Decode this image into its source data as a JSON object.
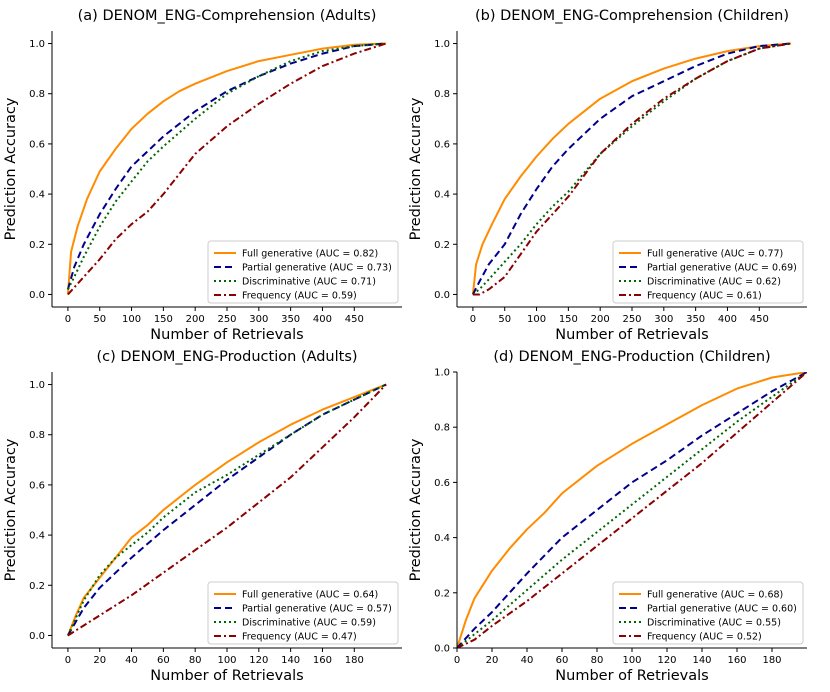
{
  "chart_data": [
    {
      "id": "a",
      "type": "line",
      "title": "(a) DENOM_ENG-Comprehension (Adults)",
      "xlabel": "Number of Retrievals",
      "ylabel": "Prediction Accuracy",
      "xlim": [
        -25,
        525
      ],
      "ylim": [
        -0.05,
        1.05
      ],
      "xticks": [
        0,
        50,
        100,
        150,
        200,
        250,
        300,
        350,
        400,
        450
      ],
      "yticks": [
        0.0,
        0.2,
        0.4,
        0.6,
        0.8,
        1.0
      ],
      "xdata_max": 500,
      "legend_position": "lower-right",
      "series": [
        {
          "name": "Full generative (AUC = 0.82)",
          "color": "#ff8c00",
          "dash": "solid",
          "x": [
            0,
            5,
            15,
            30,
            50,
            75,
            100,
            125,
            150,
            175,
            200,
            250,
            300,
            350,
            400,
            450,
            500
          ],
          "y": [
            0.0,
            0.17,
            0.27,
            0.38,
            0.49,
            0.58,
            0.66,
            0.72,
            0.77,
            0.81,
            0.84,
            0.89,
            0.93,
            0.955,
            0.98,
            0.995,
            1.0
          ]
        },
        {
          "name": "Partial generative (AUC = 0.73)",
          "color": "#00008b",
          "dash": "dashed",
          "x": [
            0,
            10,
            25,
            50,
            75,
            100,
            125,
            150,
            200,
            250,
            300,
            350,
            400,
            450,
            500
          ],
          "y": [
            0.02,
            0.11,
            0.2,
            0.32,
            0.42,
            0.51,
            0.57,
            0.63,
            0.73,
            0.81,
            0.87,
            0.92,
            0.96,
            0.99,
            1.0
          ]
        },
        {
          "name": "Discriminative (AUC = 0.71)",
          "color": "#006400",
          "dash": "dotted",
          "x": [
            0,
            10,
            25,
            50,
            75,
            100,
            125,
            150,
            200,
            250,
            300,
            350,
            400,
            450,
            500
          ],
          "y": [
            0.02,
            0.07,
            0.15,
            0.27,
            0.37,
            0.45,
            0.53,
            0.59,
            0.7,
            0.8,
            0.87,
            0.93,
            0.97,
            0.99,
            1.0
          ]
        },
        {
          "name": "Frequency (AUC = 0.59)",
          "color": "#8b0000",
          "dash": "dashdot",
          "x": [
            0,
            25,
            50,
            75,
            100,
            125,
            150,
            200,
            250,
            300,
            350,
            400,
            450,
            500
          ],
          "y": [
            0.0,
            0.07,
            0.14,
            0.22,
            0.28,
            0.33,
            0.4,
            0.56,
            0.67,
            0.76,
            0.84,
            0.91,
            0.96,
            1.0
          ]
        }
      ]
    },
    {
      "id": "b",
      "type": "line",
      "title": "(b) DENOM_ENG-Comprehension (Children)",
      "xlabel": "Number of Retrievals",
      "ylabel": "Prediction Accuracy",
      "xlim": [
        -25,
        525
      ],
      "ylim": [
        -0.05,
        1.05
      ],
      "xticks": [
        0,
        50,
        100,
        150,
        200,
        250,
        300,
        350,
        400,
        450
      ],
      "yticks": [
        0.0,
        0.2,
        0.4,
        0.6,
        0.8,
        1.0
      ],
      "xdata_max": 500,
      "legend_position": "lower-right",
      "series": [
        {
          "name": "Full generative (AUC = 0.77)",
          "color": "#ff8c00",
          "dash": "solid",
          "x": [
            0,
            5,
            15,
            30,
            50,
            75,
            100,
            125,
            150,
            200,
            250,
            300,
            350,
            400,
            450,
            500
          ],
          "y": [
            0.0,
            0.12,
            0.2,
            0.28,
            0.38,
            0.47,
            0.55,
            0.62,
            0.68,
            0.78,
            0.85,
            0.9,
            0.94,
            0.97,
            0.99,
            1.0
          ]
        },
        {
          "name": "Partial generative (AUC = 0.69)",
          "color": "#00008b",
          "dash": "dashed",
          "x": [
            0,
            10,
            25,
            50,
            75,
            100,
            125,
            150,
            200,
            250,
            300,
            350,
            400,
            450,
            500
          ],
          "y": [
            0.0,
            0.05,
            0.12,
            0.2,
            0.32,
            0.42,
            0.51,
            0.58,
            0.7,
            0.79,
            0.85,
            0.91,
            0.96,
            0.99,
            1.0
          ]
        },
        {
          "name": "Discriminative (AUC = 0.62)",
          "color": "#006400",
          "dash": "dotted",
          "x": [
            0,
            10,
            25,
            50,
            75,
            100,
            125,
            150,
            200,
            250,
            300,
            350,
            400,
            450,
            500
          ],
          "y": [
            0.0,
            0.02,
            0.06,
            0.13,
            0.2,
            0.28,
            0.35,
            0.41,
            0.56,
            0.67,
            0.77,
            0.86,
            0.93,
            0.98,
            1.0
          ]
        },
        {
          "name": "Frequency (AUC = 0.61)",
          "color": "#8b0000",
          "dash": "dashdot",
          "x": [
            0,
            10,
            25,
            50,
            75,
            100,
            125,
            150,
            200,
            250,
            300,
            350,
            400,
            450,
            500
          ],
          "y": [
            0.0,
            0.0,
            0.02,
            0.07,
            0.16,
            0.25,
            0.32,
            0.39,
            0.56,
            0.68,
            0.78,
            0.86,
            0.93,
            0.98,
            1.0
          ]
        }
      ]
    },
    {
      "id": "c",
      "type": "line",
      "title": "(c) DENOM_ENG-Production (Adults)",
      "xlabel": "Number of Retrievals",
      "ylabel": "Prediction Accuracy",
      "xlim": [
        -10,
        210
      ],
      "ylim": [
        -0.05,
        1.05
      ],
      "xticks": [
        0,
        20,
        40,
        60,
        80,
        100,
        120,
        140,
        160,
        180
      ],
      "yticks": [
        0.0,
        0.2,
        0.4,
        0.6,
        0.8,
        1.0
      ],
      "xdata_max": 200,
      "legend_position": "lower-right",
      "series": [
        {
          "name": "Full generative (AUC = 0.64)",
          "color": "#ff8c00",
          "dash": "solid",
          "x": [
            0,
            5,
            10,
            20,
            30,
            40,
            50,
            60,
            80,
            100,
            120,
            140,
            160,
            180,
            200
          ],
          "y": [
            0.0,
            0.08,
            0.15,
            0.23,
            0.31,
            0.39,
            0.44,
            0.5,
            0.6,
            0.69,
            0.77,
            0.84,
            0.9,
            0.95,
            1.0
          ]
        },
        {
          "name": "Partial generative (AUC = 0.57)",
          "color": "#00008b",
          "dash": "dashed",
          "x": [
            0,
            10,
            20,
            30,
            40,
            60,
            80,
            100,
            120,
            140,
            160,
            180,
            200
          ],
          "y": [
            0.0,
            0.11,
            0.19,
            0.25,
            0.31,
            0.42,
            0.52,
            0.62,
            0.71,
            0.8,
            0.88,
            0.94,
            1.0
          ]
        },
        {
          "name": "Discriminative (AUC = 0.59)",
          "color": "#006400",
          "dash": "dotted",
          "x": [
            0,
            10,
            20,
            30,
            40,
            50,
            60,
            80,
            100,
            120,
            140,
            160,
            180,
            200
          ],
          "y": [
            0.0,
            0.14,
            0.24,
            0.31,
            0.36,
            0.41,
            0.47,
            0.57,
            0.64,
            0.72,
            0.8,
            0.88,
            0.94,
            1.0
          ]
        },
        {
          "name": "Frequency (AUC = 0.47)",
          "color": "#8b0000",
          "dash": "dashdot",
          "x": [
            0,
            20,
            40,
            60,
            80,
            100,
            120,
            140,
            160,
            180,
            200
          ],
          "y": [
            0.0,
            0.08,
            0.16,
            0.25,
            0.34,
            0.43,
            0.53,
            0.63,
            0.75,
            0.87,
            1.0
          ]
        }
      ]
    },
    {
      "id": "d",
      "type": "line",
      "title": "(d) DENOM_ENG-Production (Children)",
      "xlabel": "Number of Retrievals",
      "ylabel": "Prediction Accuracy",
      "xlim": [
        0,
        200
      ],
      "ylim": [
        0.0,
        1.0
      ],
      "xticks": [
        0,
        20,
        40,
        60,
        80,
        100,
        120,
        140,
        160,
        180
      ],
      "yticks": [
        0.0,
        0.2,
        0.4,
        0.6,
        0.8,
        1.0
      ],
      "xdata_max": 200,
      "legend_position": "lower-right",
      "series": [
        {
          "name": "Full generative (AUC = 0.68)",
          "color": "#ff8c00",
          "dash": "solid",
          "x": [
            0,
            5,
            10,
            20,
            30,
            40,
            50,
            60,
            80,
            100,
            120,
            140,
            160,
            180,
            200
          ],
          "y": [
            0.0,
            0.1,
            0.18,
            0.28,
            0.36,
            0.43,
            0.49,
            0.56,
            0.66,
            0.74,
            0.81,
            0.88,
            0.94,
            0.98,
            1.0
          ]
        },
        {
          "name": "Partial generative (AUC = 0.60)",
          "color": "#00008b",
          "dash": "dashed",
          "x": [
            0,
            10,
            20,
            40,
            60,
            80,
            100,
            120,
            140,
            160,
            180,
            200
          ],
          "y": [
            0.0,
            0.07,
            0.13,
            0.27,
            0.4,
            0.5,
            0.6,
            0.68,
            0.77,
            0.85,
            0.93,
            1.0
          ]
        },
        {
          "name": "Discriminative (AUC = 0.55)",
          "color": "#006400",
          "dash": "dotted",
          "x": [
            0,
            10,
            20,
            40,
            60,
            80,
            100,
            120,
            140,
            160,
            180,
            200
          ],
          "y": [
            0.0,
            0.05,
            0.1,
            0.21,
            0.32,
            0.42,
            0.52,
            0.62,
            0.72,
            0.82,
            0.91,
            1.0
          ]
        },
        {
          "name": "Frequency (AUC = 0.52)",
          "color": "#8b0000",
          "dash": "dashdot",
          "x": [
            0,
            10,
            20,
            40,
            60,
            80,
            100,
            120,
            140,
            160,
            180,
            200
          ],
          "y": [
            0.0,
            0.03,
            0.08,
            0.17,
            0.27,
            0.37,
            0.47,
            0.57,
            0.67,
            0.78,
            0.89,
            1.0
          ]
        }
      ]
    }
  ]
}
